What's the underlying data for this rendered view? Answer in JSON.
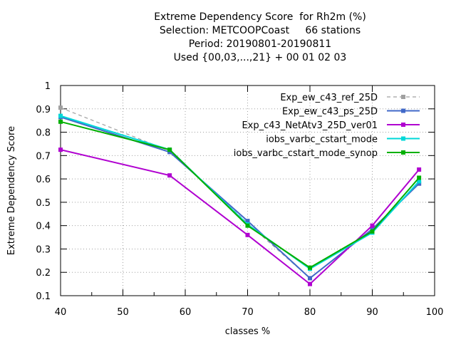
{
  "chart_data": {
    "type": "line",
    "title_lines": [
      "Extreme Dependency Score  for Rh2m (%)",
      "Selection: METCOOPCoast     66 stations",
      "Period: 20190801-20190811",
      "Used {00,03,...,21} + 00 01 02 03"
    ],
    "xlabel": "classes %",
    "ylabel": "Extreme Dependency Score",
    "xlim": [
      40,
      100
    ],
    "ylim": [
      0.1,
      1
    ],
    "x_ticks": [
      "40",
      "50",
      "60",
      "70",
      "80",
      "90",
      "100"
    ],
    "y_ticks": [
      "0.1",
      "0.2",
      "0.3",
      "0.4",
      "0.5",
      "0.6",
      "0.7",
      "0.8",
      "0.9",
      "1"
    ],
    "grid": true,
    "legend_position": "top-right",
    "series": [
      {
        "name": "Exp_ew_c43_ref_25D",
        "color": "#a0a0a0",
        "dashed": true,
        "x": [
          40,
          57.5,
          70,
          80,
          90,
          97.5
        ],
        "y": [
          0.905,
          0.72,
          0.41,
          0.175,
          0.385,
          0.58
        ]
      },
      {
        "name": "Exp_ew_c43_ps_25D",
        "color": "#4169c8",
        "dashed": false,
        "x": [
          40,
          57.5,
          70,
          80,
          90,
          97.5
        ],
        "y": [
          0.865,
          0.715,
          0.42,
          0.175,
          0.385,
          0.58
        ]
      },
      {
        "name": "Exp_c43_NetAtv3_25D_ver01",
        "color": "#b000d0",
        "dashed": false,
        "x": [
          40,
          57.5,
          70,
          80,
          90,
          97.5
        ],
        "y": [
          0.725,
          0.615,
          0.36,
          0.15,
          0.4,
          0.64
        ]
      },
      {
        "name": "iobs_varbc_cstart_mode",
        "color": "#00d8d8",
        "dashed": false,
        "x": [
          40,
          57.5,
          70,
          80,
          90,
          97.5
        ],
        "y": [
          0.87,
          0.725,
          0.405,
          0.215,
          0.37,
          0.59
        ]
      },
      {
        "name": "iobs_varbc_cstart_mode_synop",
        "color": "#00b000",
        "dashed": false,
        "x": [
          40,
          57.5,
          70,
          80,
          90,
          97.5
        ],
        "y": [
          0.845,
          0.725,
          0.4,
          0.22,
          0.375,
          0.605
        ]
      }
    ]
  }
}
